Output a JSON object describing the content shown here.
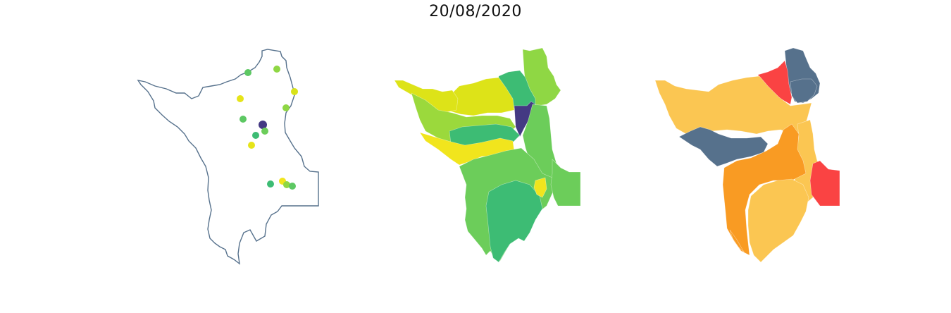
{
  "title": "20/08/2020",
  "colors": {
    "outline": "#56718c",
    "background": "#ffffff",
    "viridis_dark": "#443983",
    "viridis_green": "#3dbc74",
    "viridis_midgreen": "#6ccd5a",
    "viridis_lightgreen": "#9bd93c",
    "viridis_yellow": "#dde318",
    "viridis_brightyellow": "#f1e51d",
    "risk_blue": "#56718c",
    "risk_red": "#fa4343",
    "risk_orange": "#f99b23",
    "risk_lightorange": "#fbc652"
  },
  "panels": [
    {
      "id": "stations",
      "point_colors": [
        "#5dc863",
        "#8fd744",
        "#d8e219",
        "#e6e419",
        "#8fd744",
        "#443983",
        "#5dc863",
        "#3dbc74",
        "#e6e419",
        "#6ccd5a",
        "#3dbc74",
        "#f1e51d",
        "#8fd744",
        "#5dc863"
      ]
    },
    {
      "id": "interpolated",
      "region_colors": [
        "#8fd744",
        "#3dbc74",
        "#dde318",
        "#dde318",
        "#9bd93c",
        "#443983",
        "#6ccd5a",
        "#3dbc74",
        "#f1e51d",
        "#6ccd5a",
        "#3dbc74",
        "#f1e51d",
        "#6ccd5a"
      ]
    },
    {
      "id": "risk",
      "region_colors": [
        "#56718c",
        "#fa4343",
        "#56718c",
        "#fbc652",
        "#fbc652",
        "#56718c",
        "#f99b23",
        "#fa4343",
        "#fbc652",
        "#f99b23"
      ]
    }
  ]
}
